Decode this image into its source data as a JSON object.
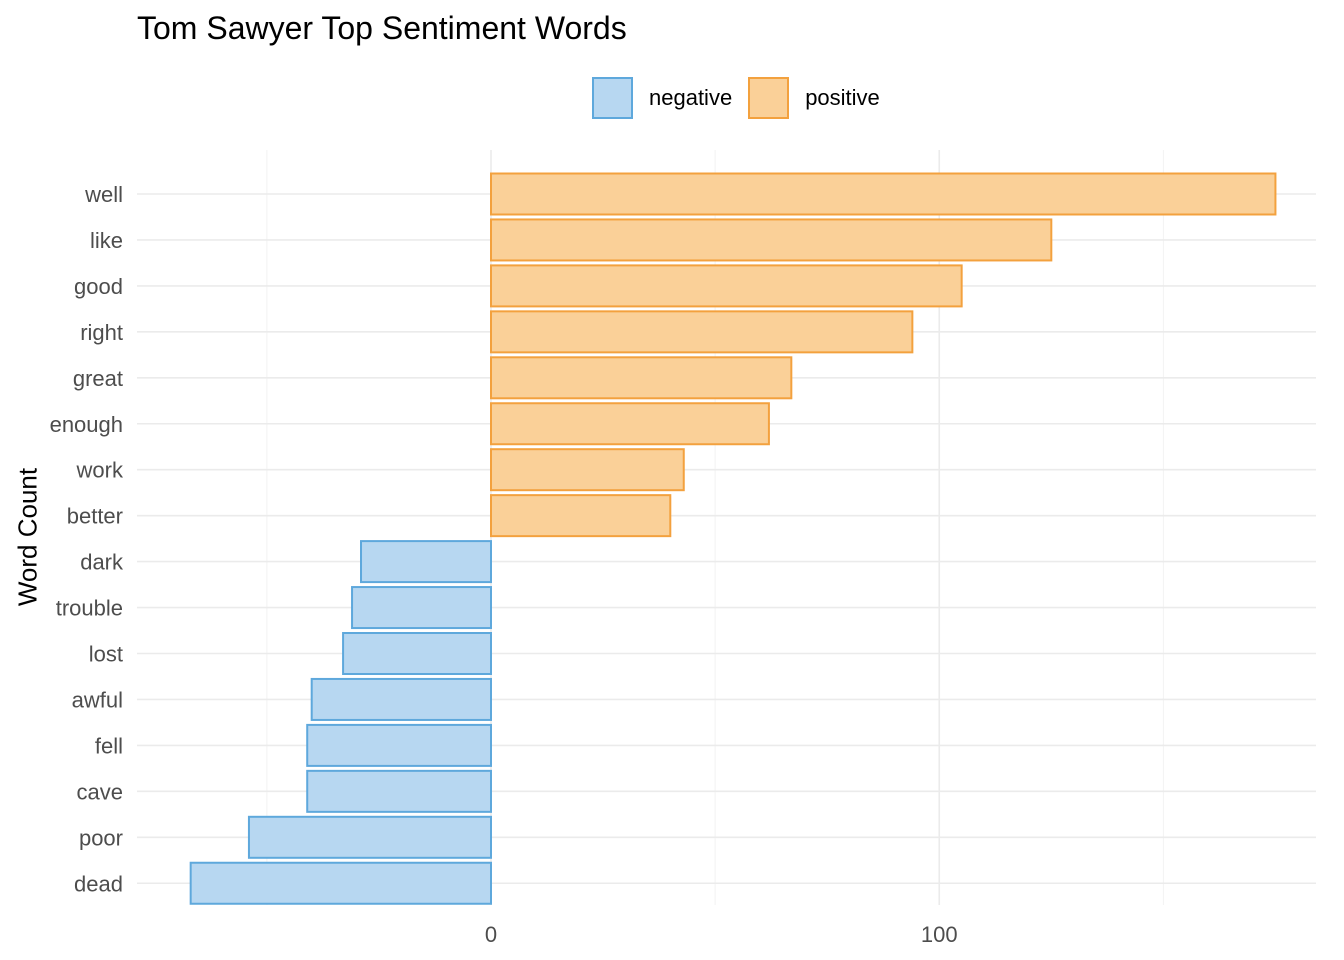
{
  "chart_data": {
    "type": "bar",
    "orientation": "horizontal",
    "title": "Tom Sawyer Top Sentiment Words",
    "xlabel": "",
    "ylabel": "Word Count",
    "xlim": [
      -67,
      184
    ],
    "x_ticks": [
      0,
      100
    ],
    "grid": true,
    "legend": {
      "position": "top",
      "entries": [
        {
          "label": "negative",
          "fill": "#b7d7f1",
          "stroke": "#5ea8dc"
        },
        {
          "label": "positive",
          "fill": "#fad098",
          "stroke": "#f3a13e"
        }
      ]
    },
    "bars": [
      {
        "word": "well",
        "value": 175,
        "sentiment": "positive"
      },
      {
        "word": "like",
        "value": 125,
        "sentiment": "positive"
      },
      {
        "word": "good",
        "value": 105,
        "sentiment": "positive"
      },
      {
        "word": "right",
        "value": 94,
        "sentiment": "positive"
      },
      {
        "word": "great",
        "value": 67,
        "sentiment": "positive"
      },
      {
        "word": "enough",
        "value": 62,
        "sentiment": "positive"
      },
      {
        "word": "work",
        "value": 43,
        "sentiment": "positive"
      },
      {
        "word": "better",
        "value": 40,
        "sentiment": "positive"
      },
      {
        "word": "dark",
        "value": -29,
        "sentiment": "negative"
      },
      {
        "word": "trouble",
        "value": -31,
        "sentiment": "negative"
      },
      {
        "word": "lost",
        "value": -33,
        "sentiment": "negative"
      },
      {
        "word": "awful",
        "value": -40,
        "sentiment": "negative"
      },
      {
        "word": "fell",
        "value": -41,
        "sentiment": "negative"
      },
      {
        "word": "cave",
        "value": -41,
        "sentiment": "negative"
      },
      {
        "word": "poor",
        "value": -54,
        "sentiment": "negative"
      },
      {
        "word": "dead",
        "value": -67,
        "sentiment": "negative"
      }
    ]
  }
}
